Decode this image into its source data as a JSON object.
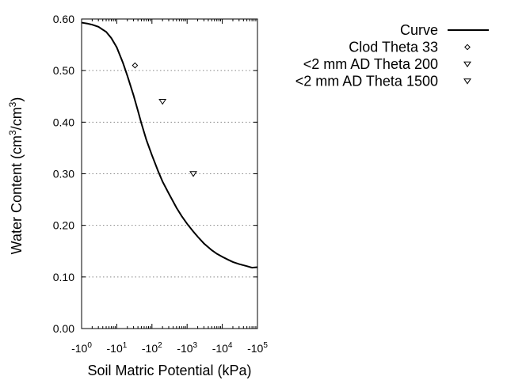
{
  "chart_data": {
    "type": "scatter",
    "title": "",
    "xlabel": "Soil Matric Potential (kPa)",
    "ylabel_main": "Water Content (cm",
    "ylabel_sup1": "3",
    "ylabel_mid": "/cm",
    "ylabel_sup2": "3",
    "ylabel_end": ")",
    "x_scale": "log",
    "xlim": [
      1,
      100000
    ],
    "ylim": [
      0,
      0.6
    ],
    "grid": "horizontal dotted",
    "legend_position": "top-right",
    "x_ticks": [
      {
        "value": 1,
        "base": "-10",
        "exp": "0"
      },
      {
        "value": 10,
        "base": "-10",
        "exp": "1"
      },
      {
        "value": 100,
        "base": "-10",
        "exp": "2"
      },
      {
        "value": 1000,
        "base": "-10",
        "exp": "3"
      },
      {
        "value": 10000,
        "base": "-10",
        "exp": "4"
      },
      {
        "value": 100000,
        "base": "-10",
        "exp": "5"
      }
    ],
    "y_ticks": [
      {
        "value": 0.0,
        "label": "0.00"
      },
      {
        "value": 0.1,
        "label": "0.10"
      },
      {
        "value": 0.2,
        "label": "0.20"
      },
      {
        "value": 0.3,
        "label": "0.30"
      },
      {
        "value": 0.4,
        "label": "0.40"
      },
      {
        "value": 0.5,
        "label": "0.50"
      },
      {
        "value": 0.6,
        "label": "0.60"
      }
    ],
    "series": [
      {
        "name": "Curve",
        "kind": "line",
        "x": [
          1,
          1.5,
          2,
          3,
          5,
          7,
          10,
          15,
          20,
          30,
          40,
          50,
          70,
          100,
          150,
          200,
          300,
          500,
          700,
          1000,
          1500,
          2000,
          3000,
          5000,
          7000,
          10000,
          15000,
          20000,
          30000,
          50000,
          70000,
          100000
        ],
        "y": [
          0.593,
          0.591,
          0.589,
          0.585,
          0.575,
          0.563,
          0.545,
          0.515,
          0.49,
          0.452,
          0.422,
          0.398,
          0.365,
          0.336,
          0.305,
          0.285,
          0.262,
          0.234,
          0.218,
          0.203,
          0.188,
          0.178,
          0.165,
          0.152,
          0.145,
          0.139,
          0.133,
          0.129,
          0.125,
          0.121,
          0.118,
          0.119
        ]
      },
      {
        "name": "Clod Theta 33",
        "kind": "scatter",
        "marker": "diamond",
        "x": [
          33
        ],
        "y": [
          0.51
        ]
      },
      {
        "name": "<2 mm AD Theta 200",
        "kind": "scatter",
        "marker": "triangle-down",
        "x": [
          200
        ],
        "y": [
          0.44
        ]
      },
      {
        "name": "<2 mm AD Theta 1500",
        "kind": "scatter",
        "marker": "triangle-down",
        "x": [
          1500
        ],
        "y": [
          0.3
        ]
      }
    ]
  }
}
